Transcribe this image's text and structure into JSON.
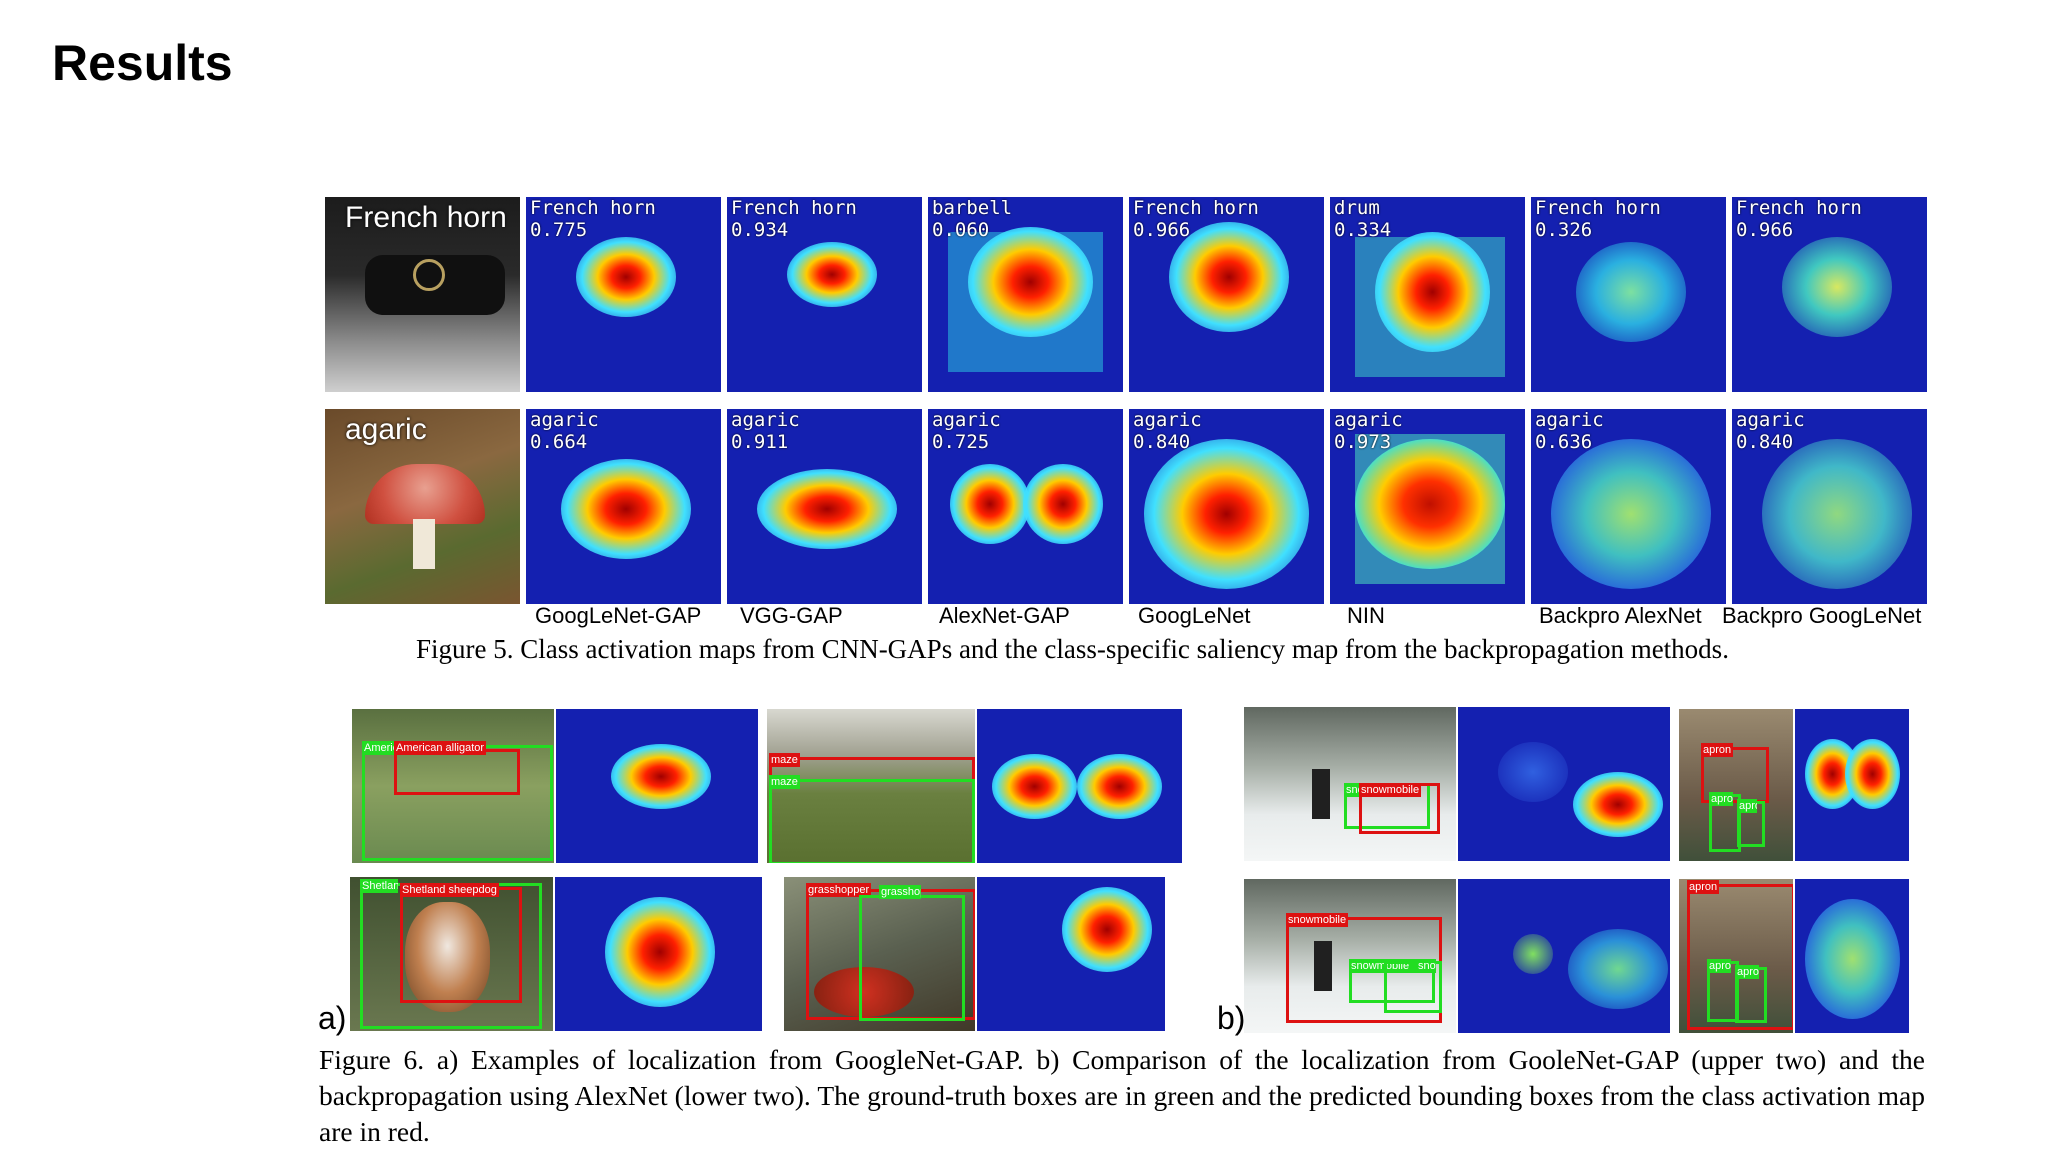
{
  "slide": {
    "title": "Results"
  },
  "figure5": {
    "row1": {
      "photo_label": "French horn",
      "maps": [
        {
          "label": "French horn",
          "score": "0.775"
        },
        {
          "label": "French horn",
          "score": "0.934"
        },
        {
          "label": "barbell",
          "score": "0.060"
        },
        {
          "label": "French horn",
          "score": "0.966"
        },
        {
          "label": "drum",
          "score": "0.334"
        },
        {
          "label": "French horn",
          "score": "0.326"
        },
        {
          "label": "French horn",
          "score": "0.966"
        }
      ]
    },
    "row2": {
      "photo_label": "agaric",
      "maps": [
        {
          "label": "agaric",
          "score": "0.664"
        },
        {
          "label": "agaric",
          "score": "0.911"
        },
        {
          "label": "agaric",
          "score": "0.725"
        },
        {
          "label": "agaric",
          "score": "0.840"
        },
        {
          "label": "agaric",
          "score": "0.973"
        },
        {
          "label": "agaric",
          "score": "0.636"
        },
        {
          "label": "agaric",
          "score": "0.840"
        }
      ]
    },
    "methods": [
      "GoogLeNet-GAP",
      "VGG-GAP",
      "AlexNet-GAP",
      "GoogLeNet",
      "NIN",
      "Backpro AlexNet",
      "Backpro GoogLeNet"
    ],
    "caption": "Figure 5. Class activation maps from CNN-GAPs and the class-specific saliency map from the backpropagation methods."
  },
  "figure6": {
    "panel_a_letter": "a)",
    "panel_b_letter": "b)",
    "tags": {
      "alligator_gt": "American alligator",
      "alligator_pred": "American alligator",
      "maze_pred": "maze",
      "maze_gt": "maze",
      "sheepdog_gt": "Shetland sheepdog",
      "sheepdog_pred": "Shetland sheepdog",
      "grasshopper_pred": "grasshopper",
      "grasshopper_gt": "grasshopper",
      "snow1_pred": "snowmobile",
      "snow1_gt": "snowmobile",
      "apron1_pred": "apron",
      "apron1_gt1": "apron",
      "apron1_gt2": "apron",
      "snow2_pred": "snowmobile",
      "snow2_gt1": "snowmobile",
      "snow2_gt2": "snowmobile",
      "apron2_pred": "apron",
      "apron2_gt1": "apron",
      "apron2_gt2": "apron"
    },
    "caption": "Figure 6. a) Examples of localization from GoogleNet-GAP. b) Comparison of the localization from GooleNet-GAP (upper two) and the backpropagation using AlexNet (lower two). The ground-truth boxes are in green and the predicted bounding boxes from the class activation map are in red."
  }
}
